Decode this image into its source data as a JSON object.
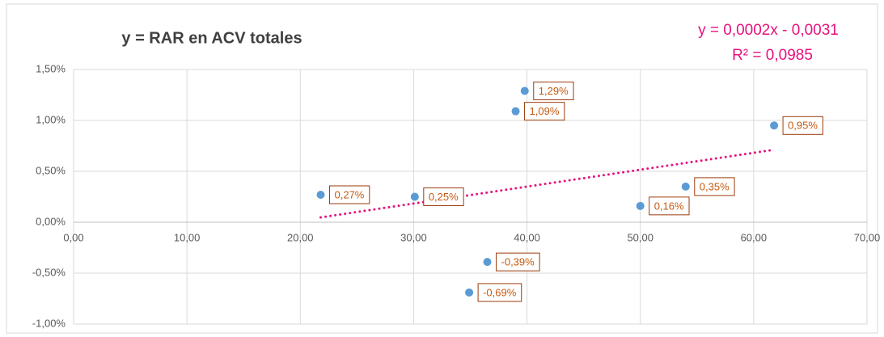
{
  "chart_data": {
    "type": "scatter",
    "title": "y = RAR en ACV totales",
    "annotations": [
      "y = 0,0002x - 0,0031",
      "R² = 0,0985"
    ],
    "series": [
      {
        "color": "#5b9bd5",
        "x": [
          21.8,
          30.1,
          36.5,
          34.9,
          39.0,
          39.8,
          50.0,
          54.0,
          61.8
        ],
        "values": [
          0.27,
          0.25,
          -0.39,
          -0.69,
          1.09,
          1.29,
          0.16,
          0.35,
          0.95
        ],
        "value_labels": [
          "0,27%",
          "0,25%",
          "-0,39%",
          "-0,69%",
          "1,09%",
          "1,29%",
          "0,16%",
          "0,35%",
          "0,95%"
        ]
      }
    ],
    "trendline_color": "#e6127d",
    "xlim": [
      0,
      70
    ],
    "xticks": [
      {
        "value": 0,
        "label": "0,00"
      },
      {
        "value": 10,
        "label": "10,00"
      },
      {
        "value": 20,
        "label": "20,00"
      },
      {
        "value": 30,
        "label": "30,00"
      },
      {
        "value": 40,
        "label": "40,00"
      },
      {
        "value": 50,
        "label": "50,00"
      },
      {
        "value": 60,
        "label": "60,00"
      },
      {
        "value": 70,
        "label": "70,00"
      }
    ],
    "ylim": [
      -1,
      1.5
    ],
    "yticks": [
      {
        "value": -1,
        "label": "-1,00%"
      },
      {
        "value": -0.5,
        "label": "-0,50%"
      },
      {
        "value": 0,
        "label": "0,00%"
      },
      {
        "value": 0.5,
        "label": "0,50%"
      },
      {
        "value": 1,
        "label": "1,00%"
      },
      {
        "value": 1.5,
        "label": "1,50%"
      }
    ],
    "grid": true
  }
}
